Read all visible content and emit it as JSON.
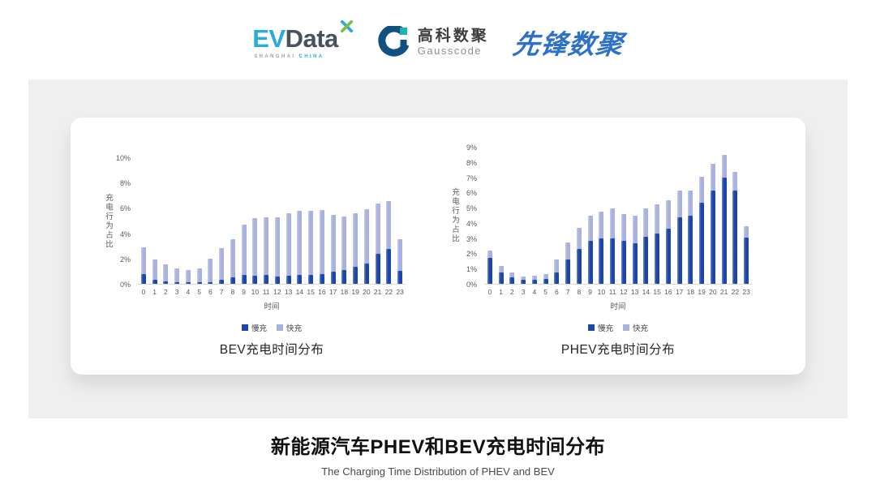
{
  "header": {
    "evdata": {
      "ev": "EV",
      "data": "Data",
      "sub_left": "SHANGHAI",
      "sub_right": "CHINA"
    },
    "gausscode": {
      "cn": "高科数聚",
      "en": "Gausscode"
    },
    "pioneer": {
      "cn": "先锋数聚"
    }
  },
  "colors": {
    "slow_charge": "#1c47a8",
    "fast_charge": "#a9b2de",
    "axis_text": "#595959",
    "axis_line": "#d9d9d9",
    "band_gray": "#efefef",
    "evdata_blue": "#29aae1",
    "evdata_dark": "#49505e",
    "evdata_green": "#7ac143",
    "gauss_navy": "#11507f",
    "gauss_teal": "#1ab5b2",
    "pioneer_blue": "#2d72c8"
  },
  "chart_data": [
    {
      "type": "bar",
      "stacked": true,
      "title": "BEV充电时间分布",
      "xlabel": "时间",
      "ylabel": "充电行为占比",
      "ylim": [
        0,
        10
      ],
      "ytick_step": 2,
      "ytick_suffix": "%",
      "grid": false,
      "legend_position": "bottom",
      "categories": [
        0,
        1,
        2,
        3,
        4,
        5,
        6,
        7,
        8,
        9,
        10,
        11,
        12,
        13,
        14,
        15,
        16,
        17,
        18,
        19,
        20,
        21,
        22,
        23
      ],
      "series": [
        {
          "name": "慢充",
          "color": "#1c47a8",
          "values": [
            0.75,
            0.35,
            0.2,
            0.1,
            0.1,
            0.1,
            0.15,
            0.35,
            0.5,
            0.7,
            0.65,
            0.7,
            0.6,
            0.65,
            0.7,
            0.7,
            0.8,
            0.95,
            1.1,
            1.35,
            1.6,
            2.4,
            2.75,
            1.0
          ]
        },
        {
          "name": "快充",
          "color": "#a9b2de",
          "values": [
            2.15,
            1.55,
            1.35,
            1.1,
            1.0,
            1.1,
            1.85,
            2.5,
            3.05,
            3.95,
            4.55,
            4.55,
            4.65,
            4.95,
            5.1,
            5.1,
            5.05,
            4.5,
            4.2,
            4.2,
            4.3,
            3.95,
            3.8,
            2.55
          ]
        }
      ]
    },
    {
      "type": "bar",
      "stacked": true,
      "title": "PHEV充电时间分布",
      "xlabel": "时间",
      "ylabel": "充电行为占比",
      "ylim": [
        0,
        9
      ],
      "ytick_step": 1,
      "ytick_suffix": "%",
      "grid": false,
      "legend_position": "bottom",
      "categories": [
        0,
        1,
        2,
        3,
        4,
        5,
        6,
        7,
        8,
        9,
        10,
        11,
        12,
        13,
        14,
        15,
        16,
        17,
        18,
        19,
        20,
        21,
        22,
        23
      ],
      "series": [
        {
          "name": "慢充",
          "color": "#1c47a8",
          "values": [
            1.7,
            0.75,
            0.45,
            0.25,
            0.25,
            0.3,
            0.75,
            1.6,
            2.3,
            2.8,
            3.0,
            3.0,
            2.8,
            2.65,
            3.1,
            3.3,
            3.6,
            4.35,
            4.5,
            5.35,
            6.15,
            7.0,
            6.1,
            3.05
          ]
        },
        {
          "name": "快充",
          "color": "#a9b2de",
          "values": [
            0.5,
            0.4,
            0.3,
            0.25,
            0.3,
            0.35,
            0.85,
            1.1,
            1.35,
            1.7,
            1.75,
            1.95,
            1.8,
            1.8,
            1.85,
            1.9,
            1.9,
            1.75,
            1.6,
            1.7,
            1.75,
            1.45,
            1.25,
            0.75
          ]
        }
      ]
    }
  ],
  "footer": {
    "title": "新能源汽车PHEV和BEV充电时间分布",
    "subtitle": "The Charging Time Distribution of PHEV and BEV"
  }
}
